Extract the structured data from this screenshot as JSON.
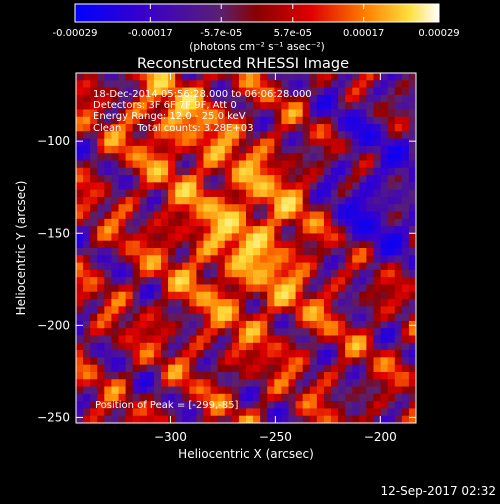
{
  "chart_data": {
    "type": "heatmap",
    "title": "Reconstructed RHESSI Image",
    "xlabel": "Heliocentric X (arcsec)",
    "ylabel": "Heliocentric Y (arcsec)",
    "xlim": [
      -345,
      -183
    ],
    "ylim": [
      -253,
      -63
    ],
    "x_ticks": [
      -300,
      -250,
      -200
    ],
    "y_ticks": [
      -250,
      -200,
      -150,
      -100
    ],
    "colorbar": {
      "range": [
        -0.00029,
        0.00029
      ],
      "tick_values": [
        -0.00029,
        -0.00017,
        -5.7e-05,
        5.7e-05,
        0.00017,
        0.00029
      ],
      "tick_labels": [
        "-0.00029",
        "-0.00017",
        "-5.7e-05",
        "5.7e-05",
        "0.00017",
        "0.00029"
      ],
      "unit_label": "(photons cm⁻² s⁻¹ asec⁻²)",
      "colormap": "RHESSI blue-purple-red-yellow-white"
    },
    "annotations": [
      "18-Dec-2014 05:56:28.000 to 06:06:28.000",
      "Detectors: 3F 6F 7F 9F, Att 0",
      "Energy Range: 12.0 - 25.0 keV",
      "Clean     Total counts: 3.28E+03"
    ],
    "peak_label": "Position of Peak = [-299,-85]",
    "peak_position": [
      -299,
      -85
    ],
    "peak_value": 0.00029
  },
  "footer": {
    "timestamp": "12-Sep-2017 02:32"
  }
}
